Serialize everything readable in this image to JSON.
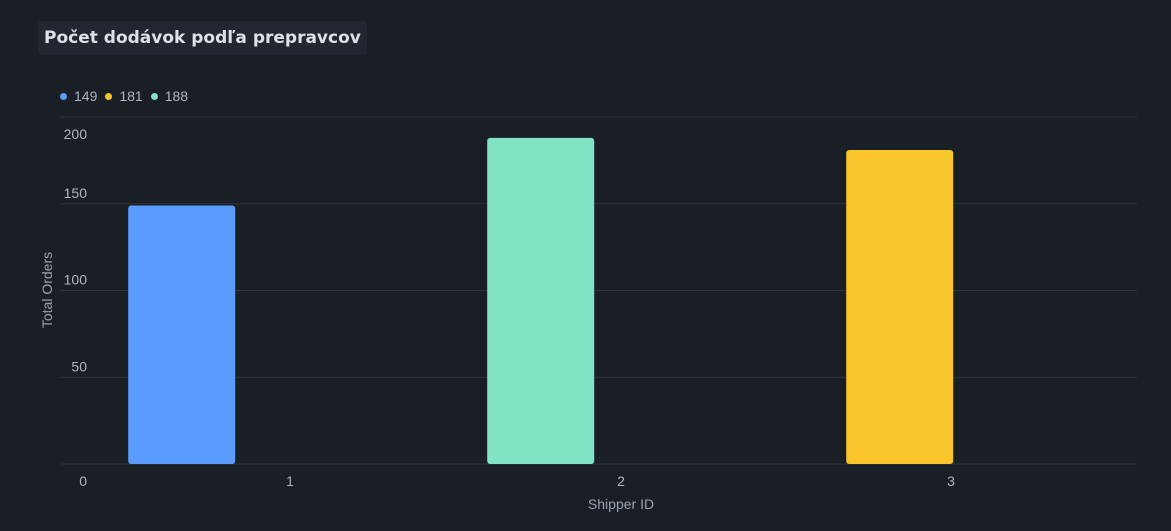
{
  "title": "Počet dodávok podľa prepravcov",
  "legend": [
    {
      "label": "149",
      "color": "#5b9cff"
    },
    {
      "label": "181",
      "color": "#f9c52c"
    },
    {
      "label": "188",
      "color": "#7fe3c4"
    }
  ],
  "chart_data": {
    "type": "bar",
    "title": "Počet dodávok podľa prepravcov",
    "xlabel": "Shipper ID",
    "ylabel": "Total Orders",
    "categories": [
      "1",
      "2",
      "3"
    ],
    "values": [
      149,
      188,
      181
    ],
    "bar_colors": [
      "#5b9cff",
      "#7fe3c4",
      "#f9c52c"
    ],
    "y_ticks": [
      "0",
      "50",
      "100",
      "150",
      "200"
    ],
    "ylim": [
      0,
      200
    ],
    "grid": true,
    "legend_position": "top-left"
  },
  "colors": {
    "background": "#1a1e25",
    "grid": "#2d333c",
    "text": "#aeb5bf"
  }
}
